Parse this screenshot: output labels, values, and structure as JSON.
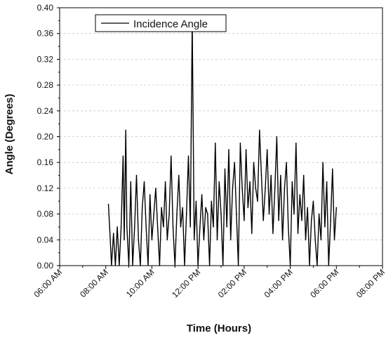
{
  "chart_data": {
    "type": "line",
    "xlabel": "Time (Hours)",
    "ylabel": "Angle (Degrees)",
    "xlim": [
      "06:00 AM",
      "08:00 PM"
    ],
    "ylim": [
      0,
      0.4
    ],
    "x_ticks": [
      "06:00 AM",
      "08:00 AM",
      "10:00 AM",
      "12:00 PM",
      "02:00 PM",
      "04:00 PM",
      "06:00 PM",
      "08:00 PM"
    ],
    "y_ticks": [
      "0.00",
      "0.04",
      "0.08",
      "0.12",
      "0.16",
      "0.20",
      "0.24",
      "0.28",
      "0.32",
      "0.36",
      "0.40"
    ],
    "grid": true,
    "legend_position": "top-left",
    "series": [
      {
        "name": "Incidence Angle",
        "color": "#000000",
        "x": [
          "08:07 AM",
          "08:10 AM",
          "08:15 AM",
          "08:20 AM",
          "08:25 AM",
          "08:30 AM",
          "08:35 AM",
          "08:40 AM",
          "08:45 AM",
          "08:48 AM",
          "08:52 AM",
          "08:55 AM",
          "09:00 AM",
          "09:05 AM",
          "09:10 AM",
          "09:15 AM",
          "09:20 AM",
          "09:25 AM",
          "09:30 AM",
          "09:35 AM",
          "09:40 AM",
          "09:45 AM",
          "09:50 AM",
          "09:55 AM",
          "10:00 AM",
          "10:05 AM",
          "10:10 AM",
          "10:15 AM",
          "10:20 AM",
          "10:25 AM",
          "10:30 AM",
          "10:35 AM",
          "10:40 AM",
          "10:45 AM",
          "10:50 AM",
          "10:55 AM",
          "11:00 AM",
          "11:05 AM",
          "11:10 AM",
          "11:15 AM",
          "11:20 AM",
          "11:25 AM",
          "11:30 AM",
          "11:35 AM",
          "11:40 AM",
          "11:45 AM",
          "11:50 AM",
          "11:55 AM",
          "12:00 PM",
          "12:05 PM",
          "12:10 PM",
          "12:15 PM",
          "12:20 PM",
          "12:25 PM",
          "12:30 PM",
          "12:35 PM",
          "12:40 PM",
          "12:45 PM",
          "12:50 PM",
          "12:55 PM",
          "01:00 PM",
          "01:05 PM",
          "01:10 PM",
          "01:15 PM",
          "01:20 PM",
          "01:25 PM",
          "01:30 PM",
          "01:35 PM",
          "01:40 PM",
          "01:45 PM",
          "01:50 PM",
          "01:55 PM",
          "02:00 PM",
          "02:05 PM",
          "02:10 PM",
          "02:15 PM",
          "02:20 PM",
          "02:25 PM",
          "02:30 PM",
          "02:35 PM",
          "02:40 PM",
          "02:45 PM",
          "02:50 PM",
          "02:55 PM",
          "03:00 PM",
          "03:05 PM",
          "03:10 PM",
          "03:15 PM",
          "03:20 PM",
          "03:25 PM",
          "03:30 PM",
          "03:35 PM",
          "03:40 PM",
          "03:45 PM",
          "03:50 PM",
          "03:55 PM",
          "04:00 PM",
          "04:05 PM",
          "04:10 PM",
          "04:15 PM",
          "04:20 PM",
          "04:25 PM",
          "04:30 PM",
          "04:35 PM",
          "04:40 PM",
          "04:45 PM",
          "04:50 PM",
          "04:55 PM",
          "05:00 PM",
          "05:05 PM",
          "05:10 PM",
          "05:15 PM",
          "05:20 PM",
          "05:25 PM",
          "05:30 PM",
          "05:35 PM",
          "05:40 PM",
          "05:45 PM",
          "05:50 PM",
          "05:55 PM",
          "06:00 PM"
        ],
        "y": [
          0.095,
          0.06,
          0.0,
          0.05,
          0.0,
          0.06,
          0.0,
          0.06,
          0.17,
          0.04,
          0.21,
          0.06,
          0.0,
          0.13,
          0.0,
          0.06,
          0.14,
          0.04,
          0.0,
          0.09,
          0.13,
          0.06,
          0.0,
          0.11,
          0.04,
          0.08,
          0.12,
          0.06,
          0.0,
          0.09,
          0.06,
          0.13,
          0.04,
          0.08,
          0.17,
          0.06,
          0.0,
          0.08,
          0.14,
          0.06,
          0.09,
          0.0,
          0.08,
          0.17,
          0.06,
          0.38,
          0.04,
          0.1,
          0.0,
          0.06,
          0.11,
          0.04,
          0.09,
          0.08,
          0.0,
          0.1,
          0.06,
          0.19,
          0.04,
          0.13,
          0.08,
          0.0,
          0.15,
          0.06,
          0.18,
          0.04,
          0.12,
          0.16,
          0.08,
          0.0,
          0.19,
          0.12,
          0.07,
          0.18,
          0.09,
          0.13,
          0.05,
          0.16,
          0.12,
          0.1,
          0.21,
          0.14,
          0.07,
          0.12,
          0.18,
          0.08,
          0.14,
          0.05,
          0.12,
          0.2,
          0.07,
          0.14,
          0.04,
          0.12,
          0.16,
          0.06,
          0.0,
          0.13,
          0.08,
          0.19,
          0.05,
          0.11,
          0.07,
          0.14,
          0.04,
          0.09,
          0.0,
          0.07,
          0.1,
          0.04,
          0.0,
          0.08,
          0.04,
          0.16,
          0.06,
          0.13,
          0.0,
          0.07,
          0.15,
          0.04,
          0.09
        ]
      }
    ]
  }
}
